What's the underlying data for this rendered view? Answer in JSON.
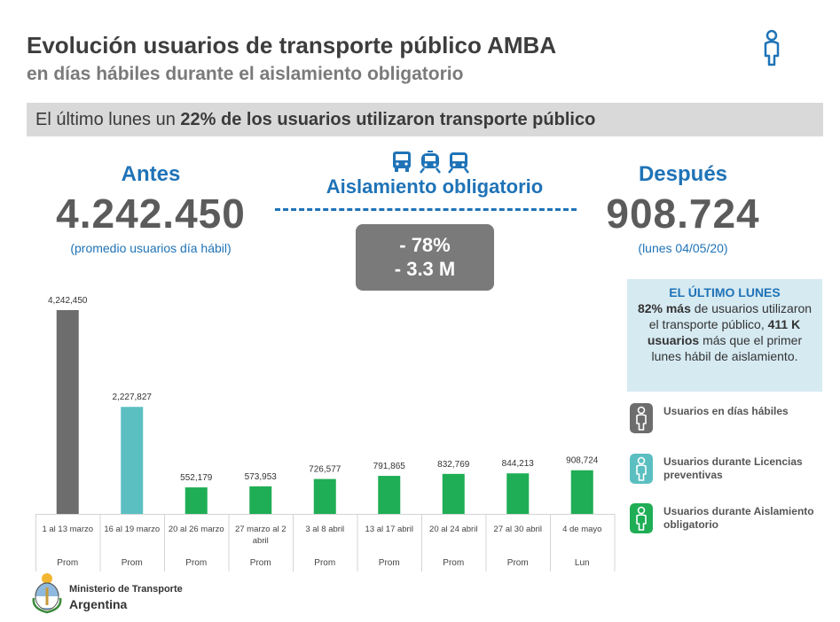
{
  "header": {
    "title": "Evolución usuarios de transporte público AMBA",
    "subtitle": "en días hábiles durante el aislamiento obligatorio"
  },
  "banner": {
    "prefix": "El último lunes un ",
    "highlight": "22% de los usuarios utilizaron transporte público"
  },
  "antes": {
    "label": "Antes",
    "value": "4.242.450",
    "note": "(promedio usuarios día hábil)"
  },
  "despues": {
    "label": "Después",
    "value": "908.724",
    "note": "(lunes 04/05/20)"
  },
  "aislamiento": {
    "label": "Aislamiento obligatorio",
    "icons": [
      "bus-icon",
      "train-icon",
      "subway-icon"
    ]
  },
  "delta": {
    "percent": "- 78%",
    "absolute": "- 3.3 M"
  },
  "info_box": {
    "heading": "EL ÚLTIMO LUNES",
    "bold1": "82% más",
    "text1": " de usuarios utilizaron el transporte público, ",
    "bold2": "411 K usuarios",
    "text2": " más que el primer lunes hábil de aislamiento."
  },
  "legend": [
    {
      "label": "Usuarios en días hábiles",
      "color": "#6d6d6d",
      "icon": "person-icon"
    },
    {
      "label": "Usuarios durante Licencias preventivas",
      "color": "#5bbfc1",
      "icon": "person-icon"
    },
    {
      "label": "Usuarios durante Aislamiento obligatorio",
      "color": "#1fae55",
      "icon": "person-icon"
    }
  ],
  "footer": {
    "ministry": "Ministerio de Transporte",
    "country": "Argentina"
  },
  "colors": {
    "blue": "#1f73b7",
    "gray": "#6d6d6d",
    "teal": "#5bbfc1",
    "green": "#1fae55"
  },
  "chart_data": {
    "type": "bar",
    "categories": [
      "1 al 13 marzo",
      "16 al 19 marzo",
      "20 al 26 marzo",
      "27 marzo al 2 abril",
      "3 al 8 abril",
      "13 al 17 abril",
      "20 al 24 abril",
      "27 al 30 abril",
      "4 de mayo"
    ],
    "sub_categories": [
      "Prom",
      "Prom",
      "Prom",
      "Prom",
      "Prom",
      "Prom",
      "Prom",
      "Prom",
      "Lun"
    ],
    "values": [
      4242450,
      2227827,
      552179,
      573953,
      726577,
      791865,
      832769,
      844213,
      908724
    ],
    "value_labels": [
      "4,242,450",
      "2,227,827",
      "552,179",
      "573,953",
      "726,577",
      "791,865",
      "832,769",
      "844,213",
      "908,724"
    ],
    "bar_colors": [
      "#6d6d6d",
      "#5bbfc1",
      "#1fae55",
      "#1fae55",
      "#1fae55",
      "#1fae55",
      "#1fae55",
      "#1fae55",
      "#1fae55"
    ],
    "ylim": [
      0,
      4242450
    ],
    "grid": false
  }
}
